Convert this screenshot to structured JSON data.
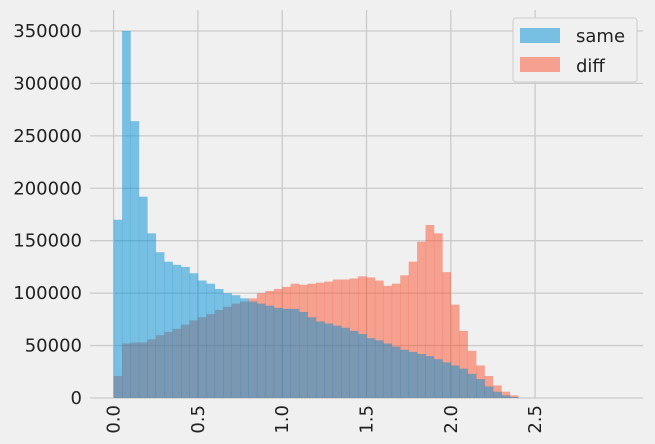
{
  "chart_data": {
    "type": "histogram",
    "bin_start": 0.0,
    "bin_width": 0.05,
    "xlim": [
      -0.14,
      3.14
    ],
    "ylim": [
      0,
      370000
    ],
    "xticks": [
      0.0,
      0.5,
      1.0,
      1.5,
      2.0,
      2.5
    ],
    "xtick_labels": [
      "0.0",
      "0.5",
      "1.0",
      "1.5",
      "2.0",
      "2.5"
    ],
    "yticks": [
      0,
      50000,
      100000,
      150000,
      200000,
      250000,
      300000,
      350000
    ],
    "ytick_labels": [
      "0",
      "50000",
      "100000",
      "150000",
      "200000",
      "250000",
      "300000",
      "350000"
    ],
    "grid": true,
    "legend_position": "top-right",
    "series": [
      {
        "name": "same",
        "color": "#008fd5",
        "alpha": 0.5,
        "values": [
          170000,
          350000,
          264000,
          192000,
          157000,
          139000,
          130000,
          127000,
          125000,
          119000,
          112000,
          109000,
          104000,
          100000,
          98000,
          95000,
          92000,
          90000,
          88000,
          86000,
          85000,
          85000,
          82000,
          77000,
          73000,
          71000,
          69000,
          67000,
          64000,
          61000,
          57000,
          55000,
          52000,
          49000,
          46000,
          44000,
          42000,
          40000,
          37000,
          34000,
          31000,
          28000,
          23000,
          18000,
          11000,
          6000,
          2500,
          800
        ]
      },
      {
        "name": "diff",
        "color": "#fc4f30",
        "alpha": 0.5,
        "values": [
          21000,
          52000,
          53000,
          53000,
          56000,
          60000,
          63000,
          66000,
          70000,
          74000,
          77000,
          80000,
          84000,
          87000,
          90000,
          92000,
          95000,
          100000,
          102000,
          104000,
          106000,
          109000,
          108000,
          109000,
          110000,
          111000,
          113000,
          113000,
          114000,
          116000,
          115000,
          112000,
          107000,
          109000,
          117000,
          130000,
          149000,
          165000,
          157000,
          120000,
          89000,
          64000,
          45000,
          31000,
          21000,
          12000,
          6000,
          2500
        ]
      }
    ]
  }
}
